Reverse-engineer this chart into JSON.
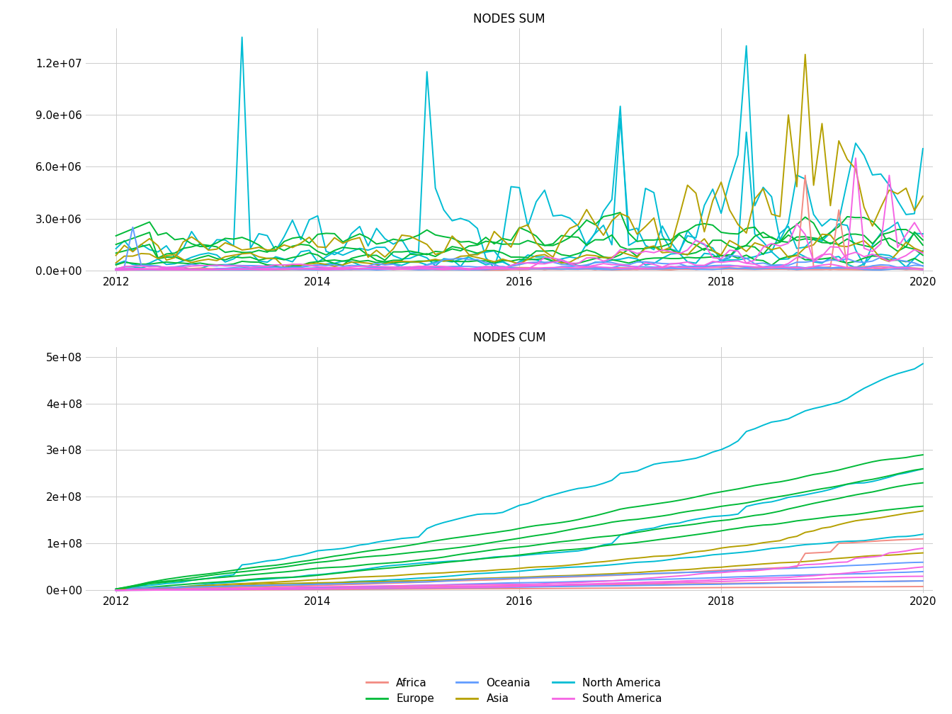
{
  "title_top": "NODES SUM",
  "title_bottom": "NODES CUM",
  "background_color": "#ffffff",
  "grid_color": "#cccccc",
  "legend": {
    "Africa": "#f28b82",
    "Europe": "#00ba38",
    "Oceania": "#619cff",
    "Asia": "#b5a000",
    "North America": "#00bcd4",
    "South America": "#f564e3"
  },
  "ylim_sum": [
    -200000.0,
    14000000.0
  ],
  "ylim_cum": [
    -5000000.0,
    520000000.0
  ],
  "yticks_sum": [
    0,
    3000000,
    6000000,
    9000000,
    12000000
  ],
  "yticks_cum": [
    0,
    100000000,
    200000000,
    300000000,
    400000000,
    500000000
  ],
  "xticks": [
    2012,
    2014,
    2016,
    2018,
    2020
  ],
  "n_months": 97,
  "start_year": 2012,
  "line_width": 1.4
}
